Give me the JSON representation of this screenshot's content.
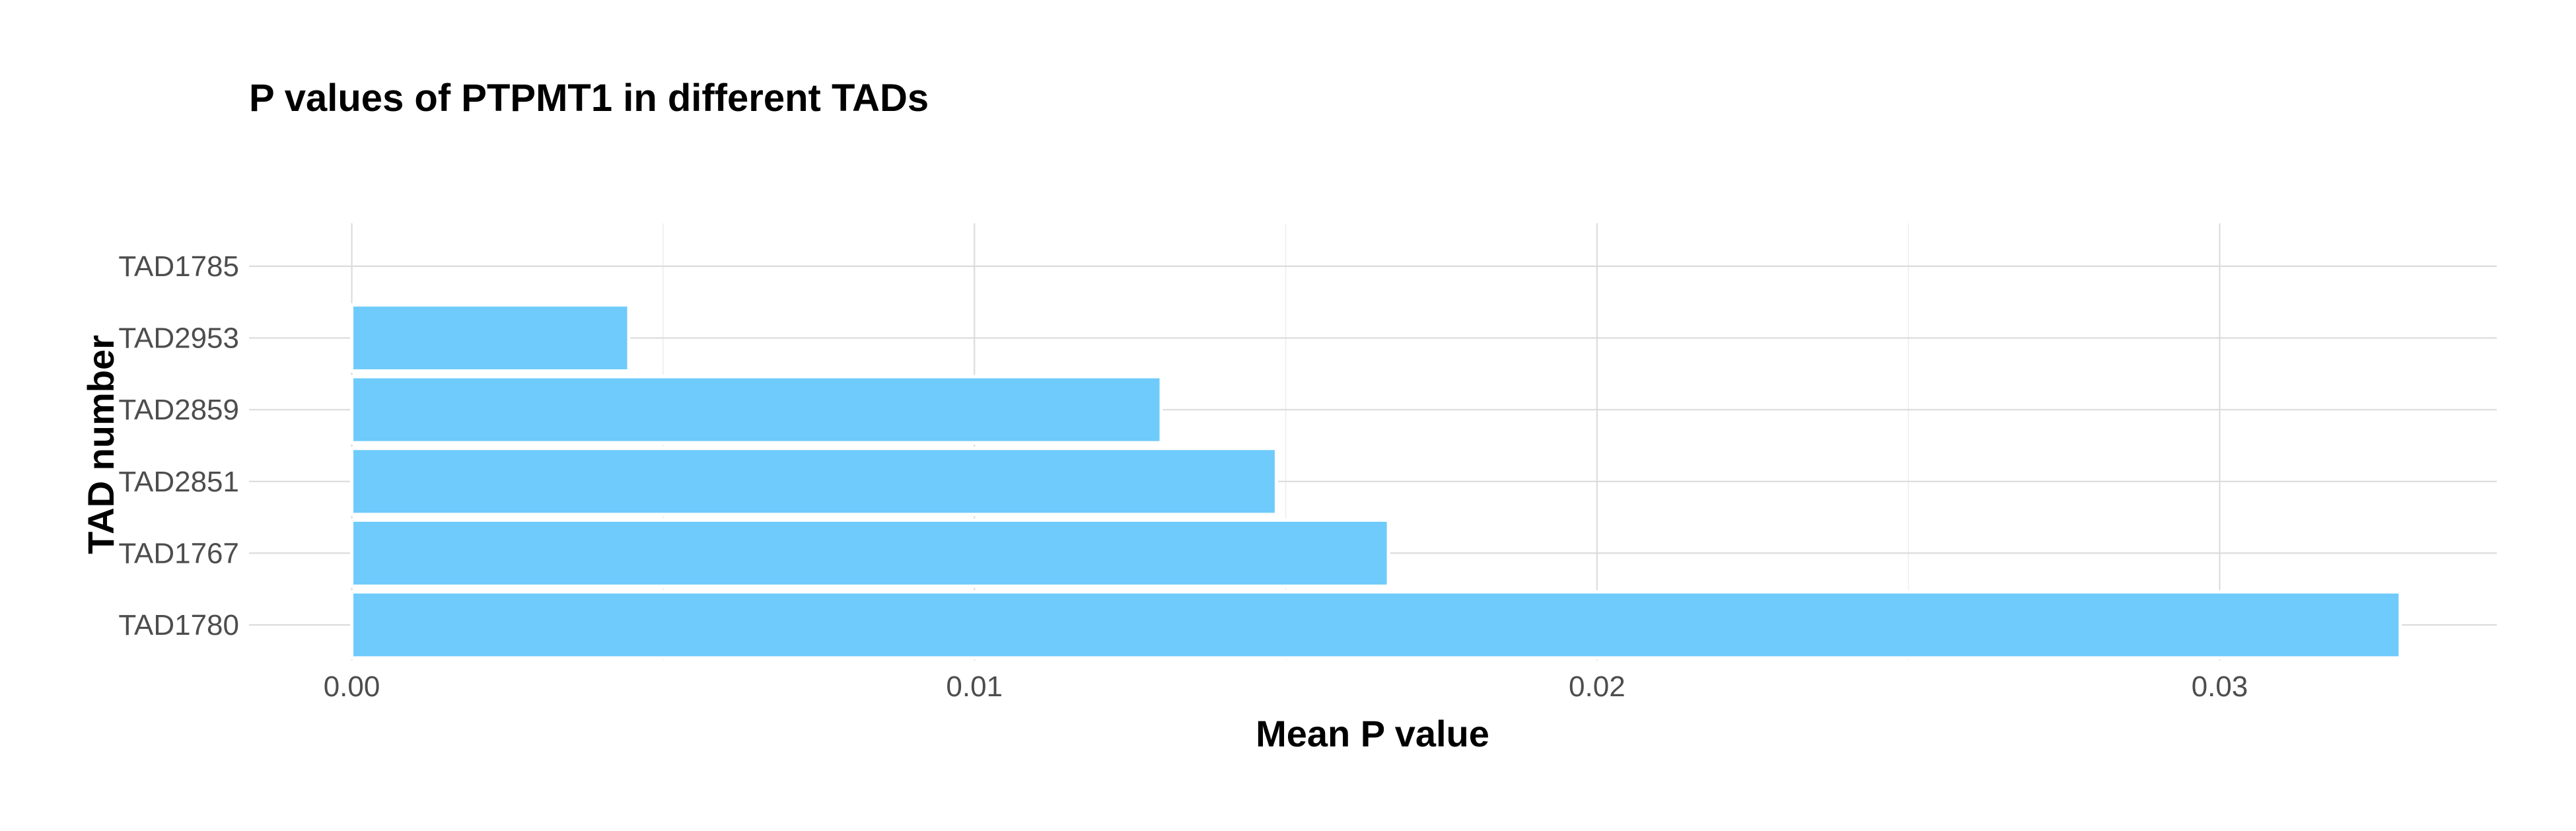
{
  "colors": {
    "bar_fill": "#6ecbfb",
    "background": "#ffffff"
  },
  "chart_data": {
    "type": "bar",
    "orientation": "horizontal",
    "title": "P values of PTPMT1 in different TADs",
    "xlabel": "Mean P value",
    "ylabel": "TAD number",
    "categories": [
      "TAD1785",
      "TAD2953",
      "TAD2859",
      "TAD2851",
      "TAD1767",
      "TAD1780"
    ],
    "values": [
      0.0,
      0.00445,
      0.013,
      0.01485,
      0.01665,
      0.0329
    ],
    "xlim": [
      -0.00165,
      0.03445
    ],
    "xticks": [
      0.0,
      0.01,
      0.02,
      0.03
    ],
    "xtick_labels": [
      "0.00",
      "0.01",
      "0.02",
      "0.03"
    ],
    "grid": true,
    "legend": "none"
  }
}
